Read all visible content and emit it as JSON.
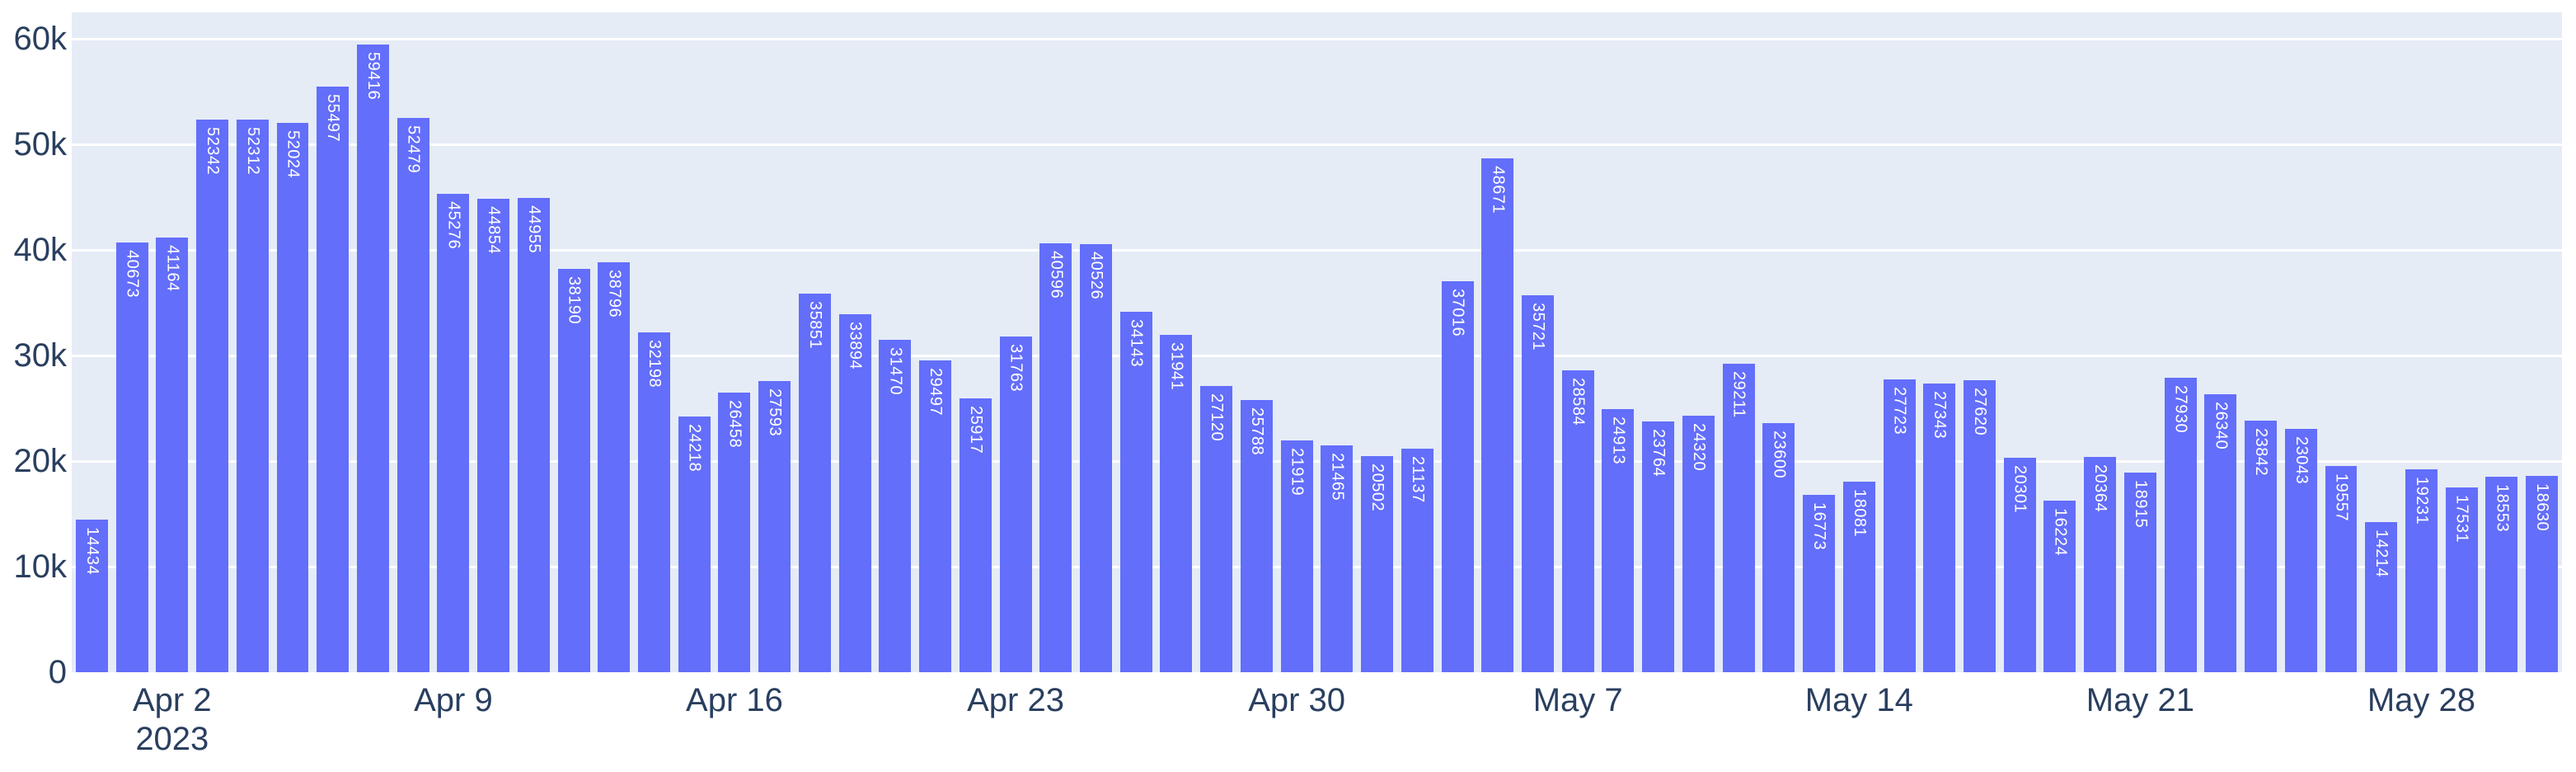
{
  "chart_data": {
    "type": "bar",
    "title": "",
    "xlabel": "",
    "ylabel": "",
    "grid": true,
    "legend": false,
    "ylim": [
      0,
      62500
    ],
    "x_dates": [
      "2023-03-31",
      "2023-04-01",
      "2023-04-02",
      "2023-04-03",
      "2023-04-04",
      "2023-04-05",
      "2023-04-06",
      "2023-04-07",
      "2023-04-08",
      "2023-04-09",
      "2023-04-10",
      "2023-04-11",
      "2023-04-12",
      "2023-04-13",
      "2023-04-14",
      "2023-04-15",
      "2023-04-16",
      "2023-04-17",
      "2023-04-18",
      "2023-04-19",
      "2023-04-20",
      "2023-04-21",
      "2023-04-22",
      "2023-04-23",
      "2023-04-24",
      "2023-04-25",
      "2023-04-26",
      "2023-04-27",
      "2023-04-28",
      "2023-04-29",
      "2023-04-30",
      "2023-05-01",
      "2023-05-02",
      "2023-05-03",
      "2023-05-04",
      "2023-05-05",
      "2023-05-06",
      "2023-05-07",
      "2023-05-08",
      "2023-05-09",
      "2023-05-10",
      "2023-05-11",
      "2023-05-12",
      "2023-05-13",
      "2023-05-14",
      "2023-05-15",
      "2023-05-16",
      "2023-05-17",
      "2023-05-18",
      "2023-05-19",
      "2023-05-20",
      "2023-05-21",
      "2023-05-22",
      "2023-05-23",
      "2023-05-24",
      "2023-05-25",
      "2023-05-26",
      "2023-05-27",
      "2023-05-28",
      "2023-05-29",
      "2023-05-30",
      "2023-05-31"
    ],
    "values": [
      14434,
      40673,
      41164,
      52342,
      52312,
      52024,
      55497,
      59416,
      52479,
      45276,
      44854,
      44955,
      38190,
      38796,
      32198,
      24218,
      26458,
      27593,
      35851,
      33894,
      31470,
      29497,
      25917,
      31763,
      40596,
      40526,
      34143,
      31941,
      27120,
      25788,
      21919,
      21465,
      20502,
      21137,
      37016,
      48671,
      35721,
      28584,
      24913,
      23764,
      24320,
      29211,
      23600,
      16773,
      18081,
      27723,
      27343,
      27620,
      20301,
      16224,
      20364,
      18915,
      27930,
      26340,
      23842,
      23043,
      19557,
      14214,
      19231,
      17531,
      18553,
      18630
    ],
    "x_ticks": [
      {
        "index": 2,
        "label": "Apr 2",
        "sublabel": "2023"
      },
      {
        "index": 9,
        "label": "Apr 9"
      },
      {
        "index": 16,
        "label": "Apr 16"
      },
      {
        "index": 23,
        "label": "Apr 23"
      },
      {
        "index": 30,
        "label": "Apr 30"
      },
      {
        "index": 37,
        "label": "May 7"
      },
      {
        "index": 44,
        "label": "May 14"
      },
      {
        "index": 51,
        "label": "May 21"
      },
      {
        "index": 58,
        "label": "May 28"
      }
    ],
    "y_ticks": [
      {
        "value": 0,
        "label": "0"
      },
      {
        "value": 10000,
        "label": "10k"
      },
      {
        "value": 20000,
        "label": "20k"
      },
      {
        "value": 30000,
        "label": "30k"
      },
      {
        "value": 40000,
        "label": "40k"
      },
      {
        "value": 50000,
        "label": "50k"
      },
      {
        "value": 60000,
        "label": "60k"
      }
    ],
    "colors": {
      "bar": "#636EFA",
      "bar_label": "#FFFFFF",
      "plot_bg": "#E5ECF6",
      "grid": "#FFFFFF",
      "tick_text": "#2A3F5F",
      "page_bg": "#FFFFFF"
    }
  }
}
